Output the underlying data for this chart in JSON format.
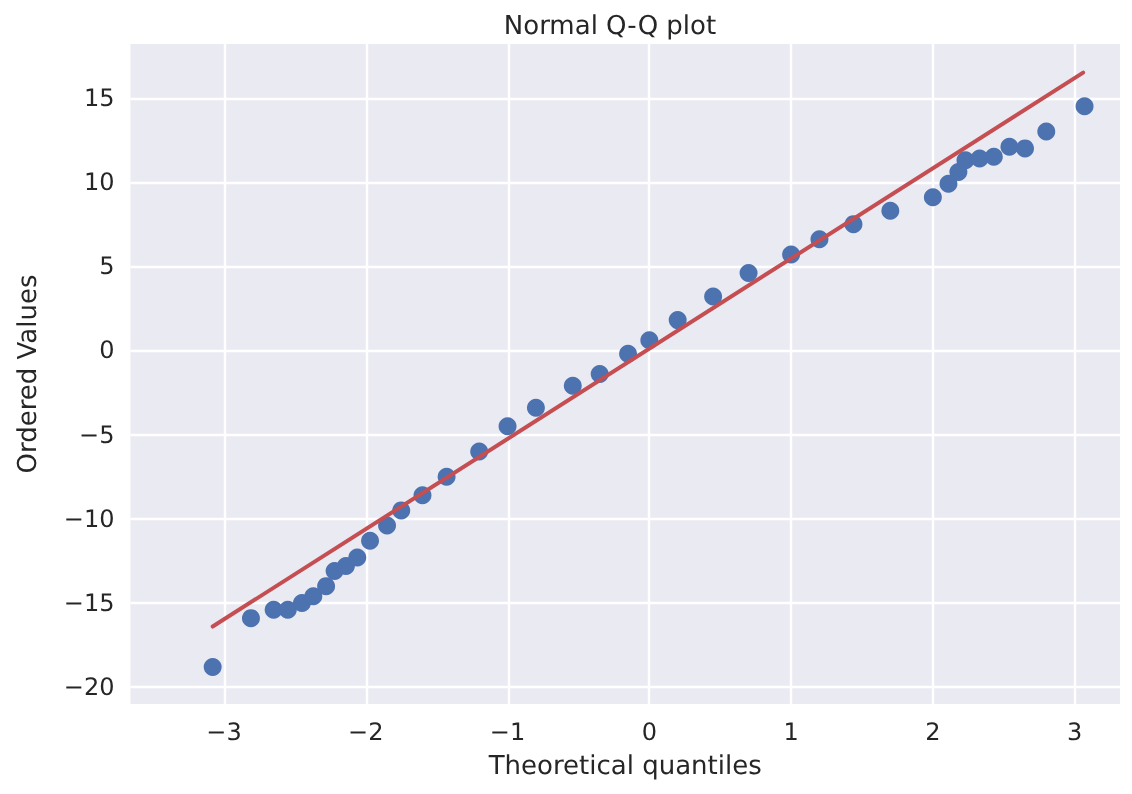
{
  "chart_data": {
    "type": "scatter",
    "title": "Normal Q-Q plot",
    "xlabel": "Theoretical quantiles",
    "ylabel": "Ordered Values",
    "xlim": [
      -3.66,
      3.32
    ],
    "xticks": [
      -3,
      -2,
      -1,
      0,
      1,
      2,
      3
    ],
    "ylim": [
      -21,
      18.2
    ],
    "yticks": [
      -20,
      -15,
      -10,
      -5,
      0,
      5,
      10,
      15
    ],
    "grid": true,
    "series": [
      {
        "marker": "circle",
        "color": "#4c72b0",
        "x": [
          -3.08,
          -2.81,
          -2.65,
          -2.55,
          -2.45,
          -2.37,
          -2.28,
          -2.22,
          -2.14,
          -2.06,
          -1.97,
          -1.85,
          -1.75,
          -1.6,
          -1.43,
          -1.2,
          -1.0,
          -0.8,
          -0.54,
          -0.35,
          -0.15,
          0,
          0.2,
          0.45,
          0.7,
          1.0,
          1.2,
          1.44,
          1.7,
          2.0,
          2.11,
          2.18,
          2.23,
          2.33,
          2.43,
          2.54,
          2.65,
          2.8,
          3.07
        ],
        "values": [
          -18.8,
          -15.9,
          -15.4,
          -15.4,
          -15.0,
          -14.6,
          -14.0,
          -13.1,
          -12.8,
          -12.3,
          -11.3,
          -10.4,
          -9.5,
          -8.6,
          -7.5,
          -6.0,
          -4.5,
          -3.4,
          -2.1,
          -1.4,
          -0.2,
          0.6,
          1.8,
          3.2,
          4.6,
          5.7,
          6.6,
          7.5,
          8.3,
          9.1,
          9.9,
          10.6,
          11.3,
          11.4,
          11.5,
          12.1,
          12.0,
          13.0,
          14.5
        ]
      },
      {
        "type": "line",
        "marker": "none",
        "line_style": "solid",
        "color": "#c44e52",
        "x": [
          -3.08,
          3.06
        ],
        "values": [
          -16.4,
          16.5
        ]
      }
    ]
  }
}
